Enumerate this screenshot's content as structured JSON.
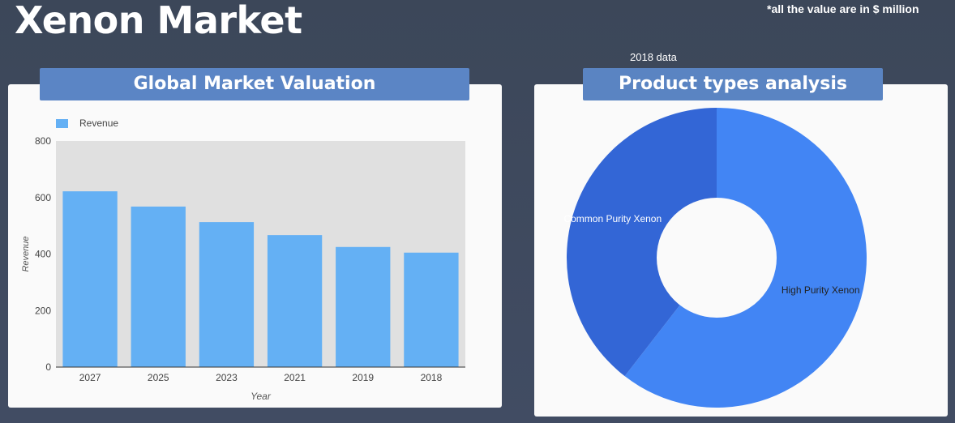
{
  "header": {
    "title": "Xenon Market",
    "note": "*all the value are in $ million",
    "subnote": "2018 data"
  },
  "colors": {
    "background": "#3e495d",
    "header_bar": "#5b85c5",
    "bar": "#64b0f4",
    "plot_bg": "#e0e0e0",
    "pie_high": "#4285f4",
    "pie_common": "#3366d6"
  },
  "chart_data": [
    {
      "type": "bar",
      "title": "Global Market Valuation",
      "categories": [
        "2027",
        "2025",
        "2023",
        "2021",
        "2019",
        "2018"
      ],
      "series": [
        {
          "name": "Revenue",
          "values": [
            622,
            568,
            513,
            467,
            425,
            405
          ]
        }
      ],
      "xlabel": "Year",
      "ylabel": "Revenue",
      "ylim": [
        0,
        800
      ],
      "yticks": [
        "0",
        "200",
        "400",
        "600",
        "800"
      ],
      "legend": "top-left",
      "grid": false
    },
    {
      "type": "pie",
      "title": "Product types analysis",
      "donut": true,
      "slices": [
        {
          "label": "High Purity Xenon",
          "value": 60.5
        },
        {
          "label": "Common Purity Xenon",
          "value": 39.5
        }
      ]
    }
  ]
}
